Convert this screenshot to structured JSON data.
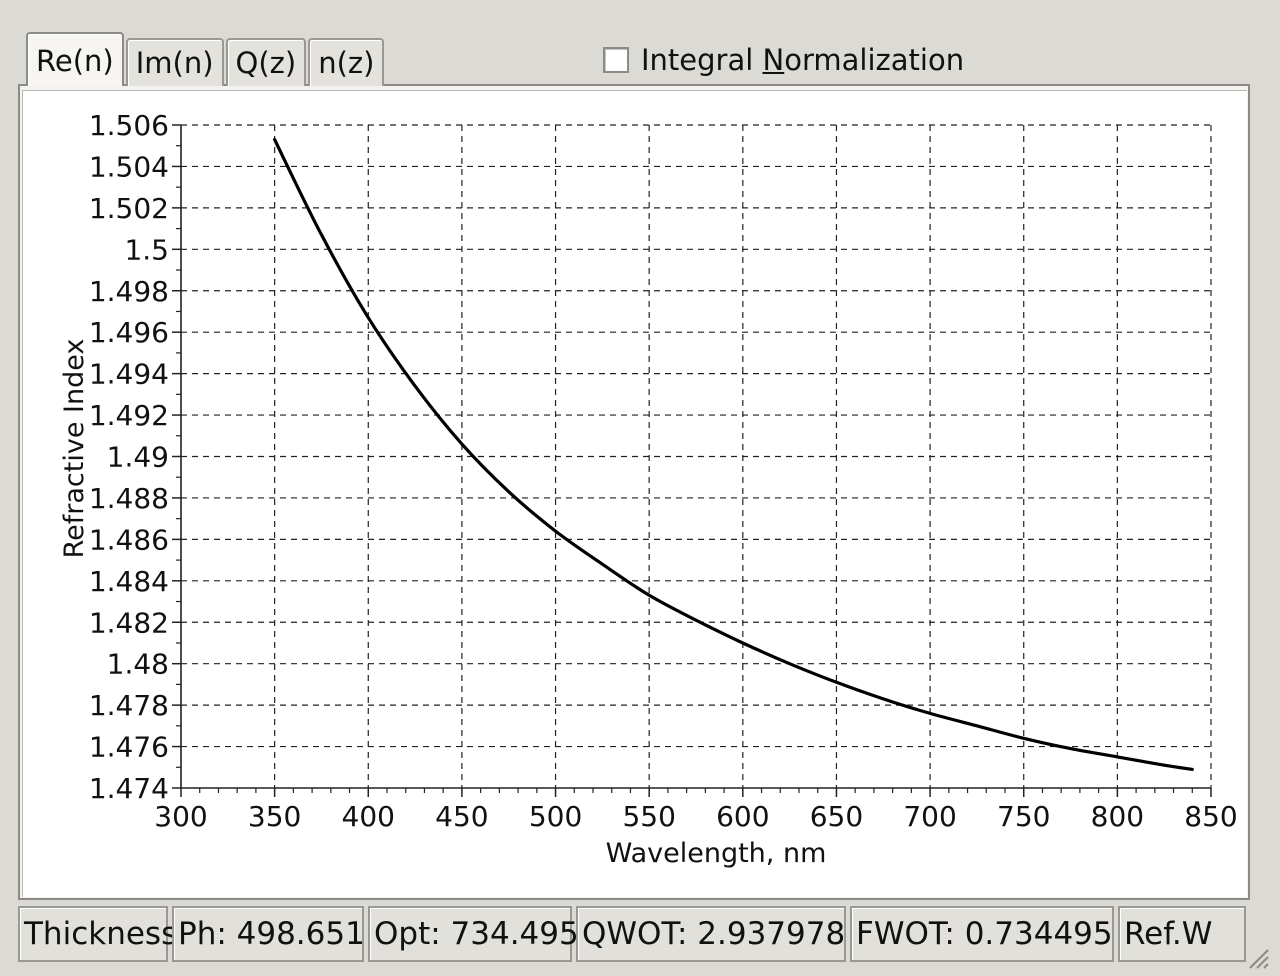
{
  "tabs": [
    {
      "label": "Re(n)",
      "active": true
    },
    {
      "label": "Im(n)",
      "active": false
    },
    {
      "label": "Q(z)",
      "active": false
    },
    {
      "label": "n(z)",
      "active": false
    }
  ],
  "normalization": {
    "label_prefix": "Integral ",
    "label_mnemonic": "N",
    "label_suffix": "ormalization",
    "checked": false
  },
  "chart_data": {
    "type": "line",
    "title": "",
    "xlabel": "Wavelength, nm",
    "ylabel": "Refractive Index",
    "xlim": [
      300,
      850
    ],
    "ylim": [
      1.474,
      1.506
    ],
    "grid": true,
    "x_ticks": [
      "300",
      "350",
      "400",
      "450",
      "500",
      "550",
      "600",
      "650",
      "700",
      "750",
      "800",
      "850"
    ],
    "y_ticks": [
      "1.474",
      "1.476",
      "1.478",
      "1.48",
      "1.482",
      "1.484",
      "1.486",
      "1.488",
      "1.49",
      "1.492",
      "1.494",
      "1.496",
      "1.498",
      "1.5",
      "1.502",
      "1.504",
      "1.506"
    ],
    "series": [
      {
        "color": "#000000",
        "x": [
          350,
          375,
          400,
          425,
          450,
          475,
          500,
          525,
          550,
          575,
          600,
          625,
          650,
          675,
          700,
          725,
          750,
          775,
          800,
          825,
          840
        ],
        "y": [
          1.5053,
          1.5007,
          1.4967,
          1.4934,
          1.4906,
          1.4883,
          1.4864,
          1.4848,
          1.4833,
          1.4821,
          1.481,
          1.48,
          1.4791,
          1.4783,
          1.4776,
          1.477,
          1.4764,
          1.4759,
          1.4755,
          1.4751,
          1.4749
        ]
      }
    ]
  },
  "status": {
    "thickness": "Thickness",
    "ph": "Ph: 498.651",
    "opt": "Opt: 734.495",
    "qwot": "QWOT: 2.937978",
    "fwot": "FWOT: 0.734495",
    "refw": "Ref.W"
  }
}
